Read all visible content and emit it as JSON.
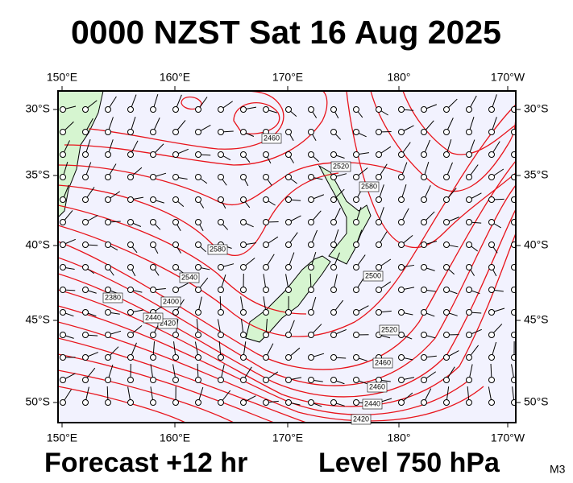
{
  "header": {
    "title": "0000 NZST Sat 16 Aug 2025"
  },
  "axes": {
    "top_labels": [
      "150°E",
      "160°E",
      "170°E",
      "180°",
      "170°W"
    ],
    "bottom_labels": [
      "150°E",
      "160°E",
      "170°E",
      "180°",
      "170°W"
    ],
    "left_labels": [
      "30°S",
      "35°S",
      "40°S",
      "45°S",
      "50°S"
    ],
    "right_labels": [
      "30°S",
      "35°S",
      "40°S",
      "45°S",
      "50°S"
    ]
  },
  "contour_labels": [
    "2460",
    "2520",
    "2580",
    "2580",
    "2540",
    "2500",
    "2520",
    "2460",
    "2460",
    "2440",
    "2420",
    "2380",
    "2400",
    "2420",
    "2440"
  ],
  "footer": {
    "forecast": "Forecast +12 hr",
    "level": "Level 750 hPa",
    "code": "M3"
  }
}
